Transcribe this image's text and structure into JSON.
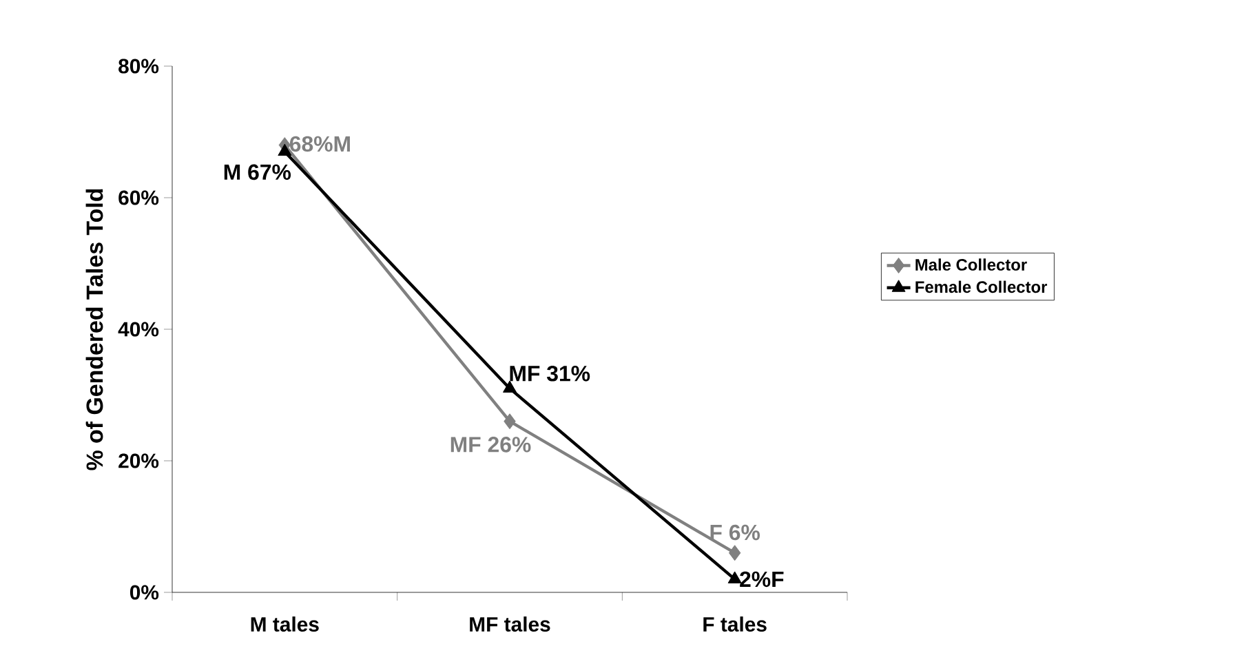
{
  "chart_data": {
    "type": "line",
    "ylabel": "% of Gendered Tales Told",
    "categories": [
      "M tales",
      "MF tales",
      "F tales"
    ],
    "ylim": [
      0,
      80
    ],
    "yticks": [
      {
        "value": 0,
        "label": "0%"
      },
      {
        "value": 20,
        "label": "20%"
      },
      {
        "value": 40,
        "label": "40%"
      },
      {
        "value": 60,
        "label": "60%"
      },
      {
        "value": 80,
        "label": "80%"
      }
    ],
    "grid": false,
    "legend": "right",
    "series": [
      {
        "name": "Male Collector",
        "color": "#808080",
        "marker": "diamond",
        "values": [
          68,
          26,
          6
        ],
        "value_labels": [
          "68%M",
          "MF 26%",
          "F 6%"
        ]
      },
      {
        "name": "Female Collector",
        "color": "#000000",
        "marker": "triangle",
        "values": [
          67,
          31,
          2
        ],
        "value_labels": [
          "M 67%",
          "MF 31%",
          "2%F"
        ]
      }
    ]
  }
}
